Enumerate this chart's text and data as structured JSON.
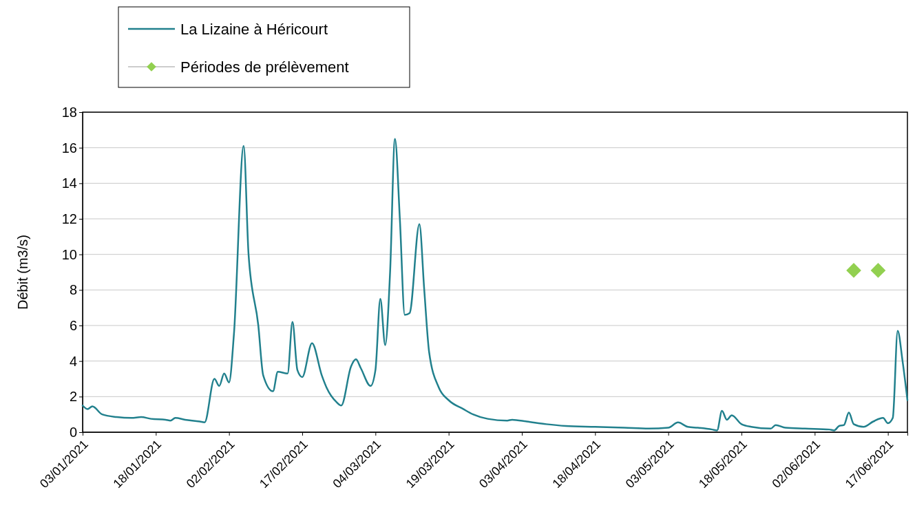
{
  "chart_data": {
    "type": "line",
    "ylabel": "Débit (m3/s)",
    "legend": "top left",
    "grid": "y",
    "xlim": [
      "2021-01-03",
      "2021-06-21"
    ],
    "ylim": [
      0,
      18
    ],
    "yticks": [
      0,
      2,
      4,
      6,
      8,
      10,
      12,
      14,
      16,
      18
    ],
    "xticks": [
      {
        "value": "2021-01-03",
        "label": "03/01/2021"
      },
      {
        "value": "2021-01-18",
        "label": "18/01/2021"
      },
      {
        "value": "2021-02-02",
        "label": "02/02/2021"
      },
      {
        "value": "2021-02-17",
        "label": "17/02/2021"
      },
      {
        "value": "2021-03-04",
        "label": "04/03/2021"
      },
      {
        "value": "2021-03-19",
        "label": "19/03/2021"
      },
      {
        "value": "2021-04-03",
        "label": "03/04/2021"
      },
      {
        "value": "2021-04-18",
        "label": "18/04/2021"
      },
      {
        "value": "2021-05-03",
        "label": "03/05/2021"
      },
      {
        "value": "2021-05-18",
        "label": "18/05/2021"
      },
      {
        "value": "2021-06-02",
        "label": "02/06/2021"
      },
      {
        "value": "2021-06-17",
        "label": "17/06/2021"
      }
    ],
    "series": [
      {
        "name": "La Lizaine à Héricourt",
        "color": "#21808d",
        "marker": "none",
        "line_style": "solid",
        "x": [
          "2021-01-03",
          "2021-01-04",
          "2021-01-05",
          "2021-01-07",
          "2021-01-10",
          "2021-01-13",
          "2021-01-15",
          "2021-01-17",
          "2021-01-20",
          "2021-01-21",
          "2021-01-22",
          "2021-01-24",
          "2021-01-27",
          "2021-01-28",
          "2021-01-30",
          "2021-01-31",
          "2021-02-01",
          "2021-02-02",
          "2021-02-03",
          "2021-02-05",
          "2021-02-06",
          "2021-02-08",
          "2021-02-09",
          "2021-02-11",
          "2021-02-12",
          "2021-02-14",
          "2021-02-15",
          "2021-02-16",
          "2021-02-17",
          "2021-02-19",
          "2021-02-21",
          "2021-02-22",
          "2021-02-24",
          "2021-02-25",
          "2021-02-27",
          "2021-02-28",
          "2021-03-01",
          "2021-03-03",
          "2021-03-04",
          "2021-03-05",
          "2021-03-06",
          "2021-03-07",
          "2021-03-08",
          "2021-03-09",
          "2021-03-10",
          "2021-03-11",
          "2021-03-13",
          "2021-03-14",
          "2021-03-15",
          "2021-03-17",
          "2021-03-19",
          "2021-03-22",
          "2021-03-24",
          "2021-03-27",
          "2021-03-31",
          "2021-04-01",
          "2021-04-04",
          "2021-04-08",
          "2021-04-12",
          "2021-04-18",
          "2021-04-24",
          "2021-04-29",
          "2021-05-03",
          "2021-05-05",
          "2021-05-07",
          "2021-05-09",
          "2021-05-12",
          "2021-05-13",
          "2021-05-14",
          "2021-05-15",
          "2021-05-16",
          "2021-05-18",
          "2021-05-20",
          "2021-05-24",
          "2021-05-25",
          "2021-05-27",
          "2021-05-31",
          "2021-06-05",
          "2021-06-06",
          "2021-06-07",
          "2021-06-08",
          "2021-06-09",
          "2021-06-10",
          "2021-06-12",
          "2021-06-14",
          "2021-06-16",
          "2021-06-17",
          "2021-06-18",
          "2021-06-19",
          "2021-06-20",
          "2021-06-21"
        ],
        "values": [
          1.5,
          1.3,
          1.45,
          1.0,
          0.85,
          0.8,
          0.85,
          0.75,
          0.7,
          0.65,
          0.8,
          0.7,
          0.6,
          0.55,
          3.0,
          2.6,
          3.3,
          2.8,
          5.5,
          16.1,
          10,
          6,
          3.2,
          2.3,
          3.4,
          3.3,
          6.2,
          3.5,
          3.1,
          5.0,
          3.2,
          2.5,
          1.7,
          1.5,
          3.7,
          4.1,
          3.6,
          2.6,
          3.5,
          7.5,
          4.9,
          9,
          16.5,
          12,
          6.6,
          6.7,
          11.7,
          8,
          4.5,
          2.5,
          1.8,
          1.3,
          1.0,
          0.75,
          0.65,
          0.7,
          0.6,
          0.45,
          0.35,
          0.3,
          0.25,
          0.2,
          0.25,
          0.55,
          0.3,
          0.25,
          0.15,
          0.1,
          1.2,
          0.7,
          0.95,
          0.45,
          0.3,
          0.2,
          0.4,
          0.25,
          0.2,
          0.15,
          0.1,
          0.35,
          0.4,
          1.1,
          0.45,
          0.3,
          0.6,
          0.8,
          0.5,
          0.8,
          5.7,
          4,
          1.8
        ]
      },
      {
        "name": "Périodes de prélèvement",
        "type": "scatter",
        "color": "#92d050",
        "marker": "diamond",
        "x": [
          "2021-06-10",
          "2021-06-15"
        ],
        "values": [
          9.1,
          9.1
        ]
      }
    ]
  }
}
